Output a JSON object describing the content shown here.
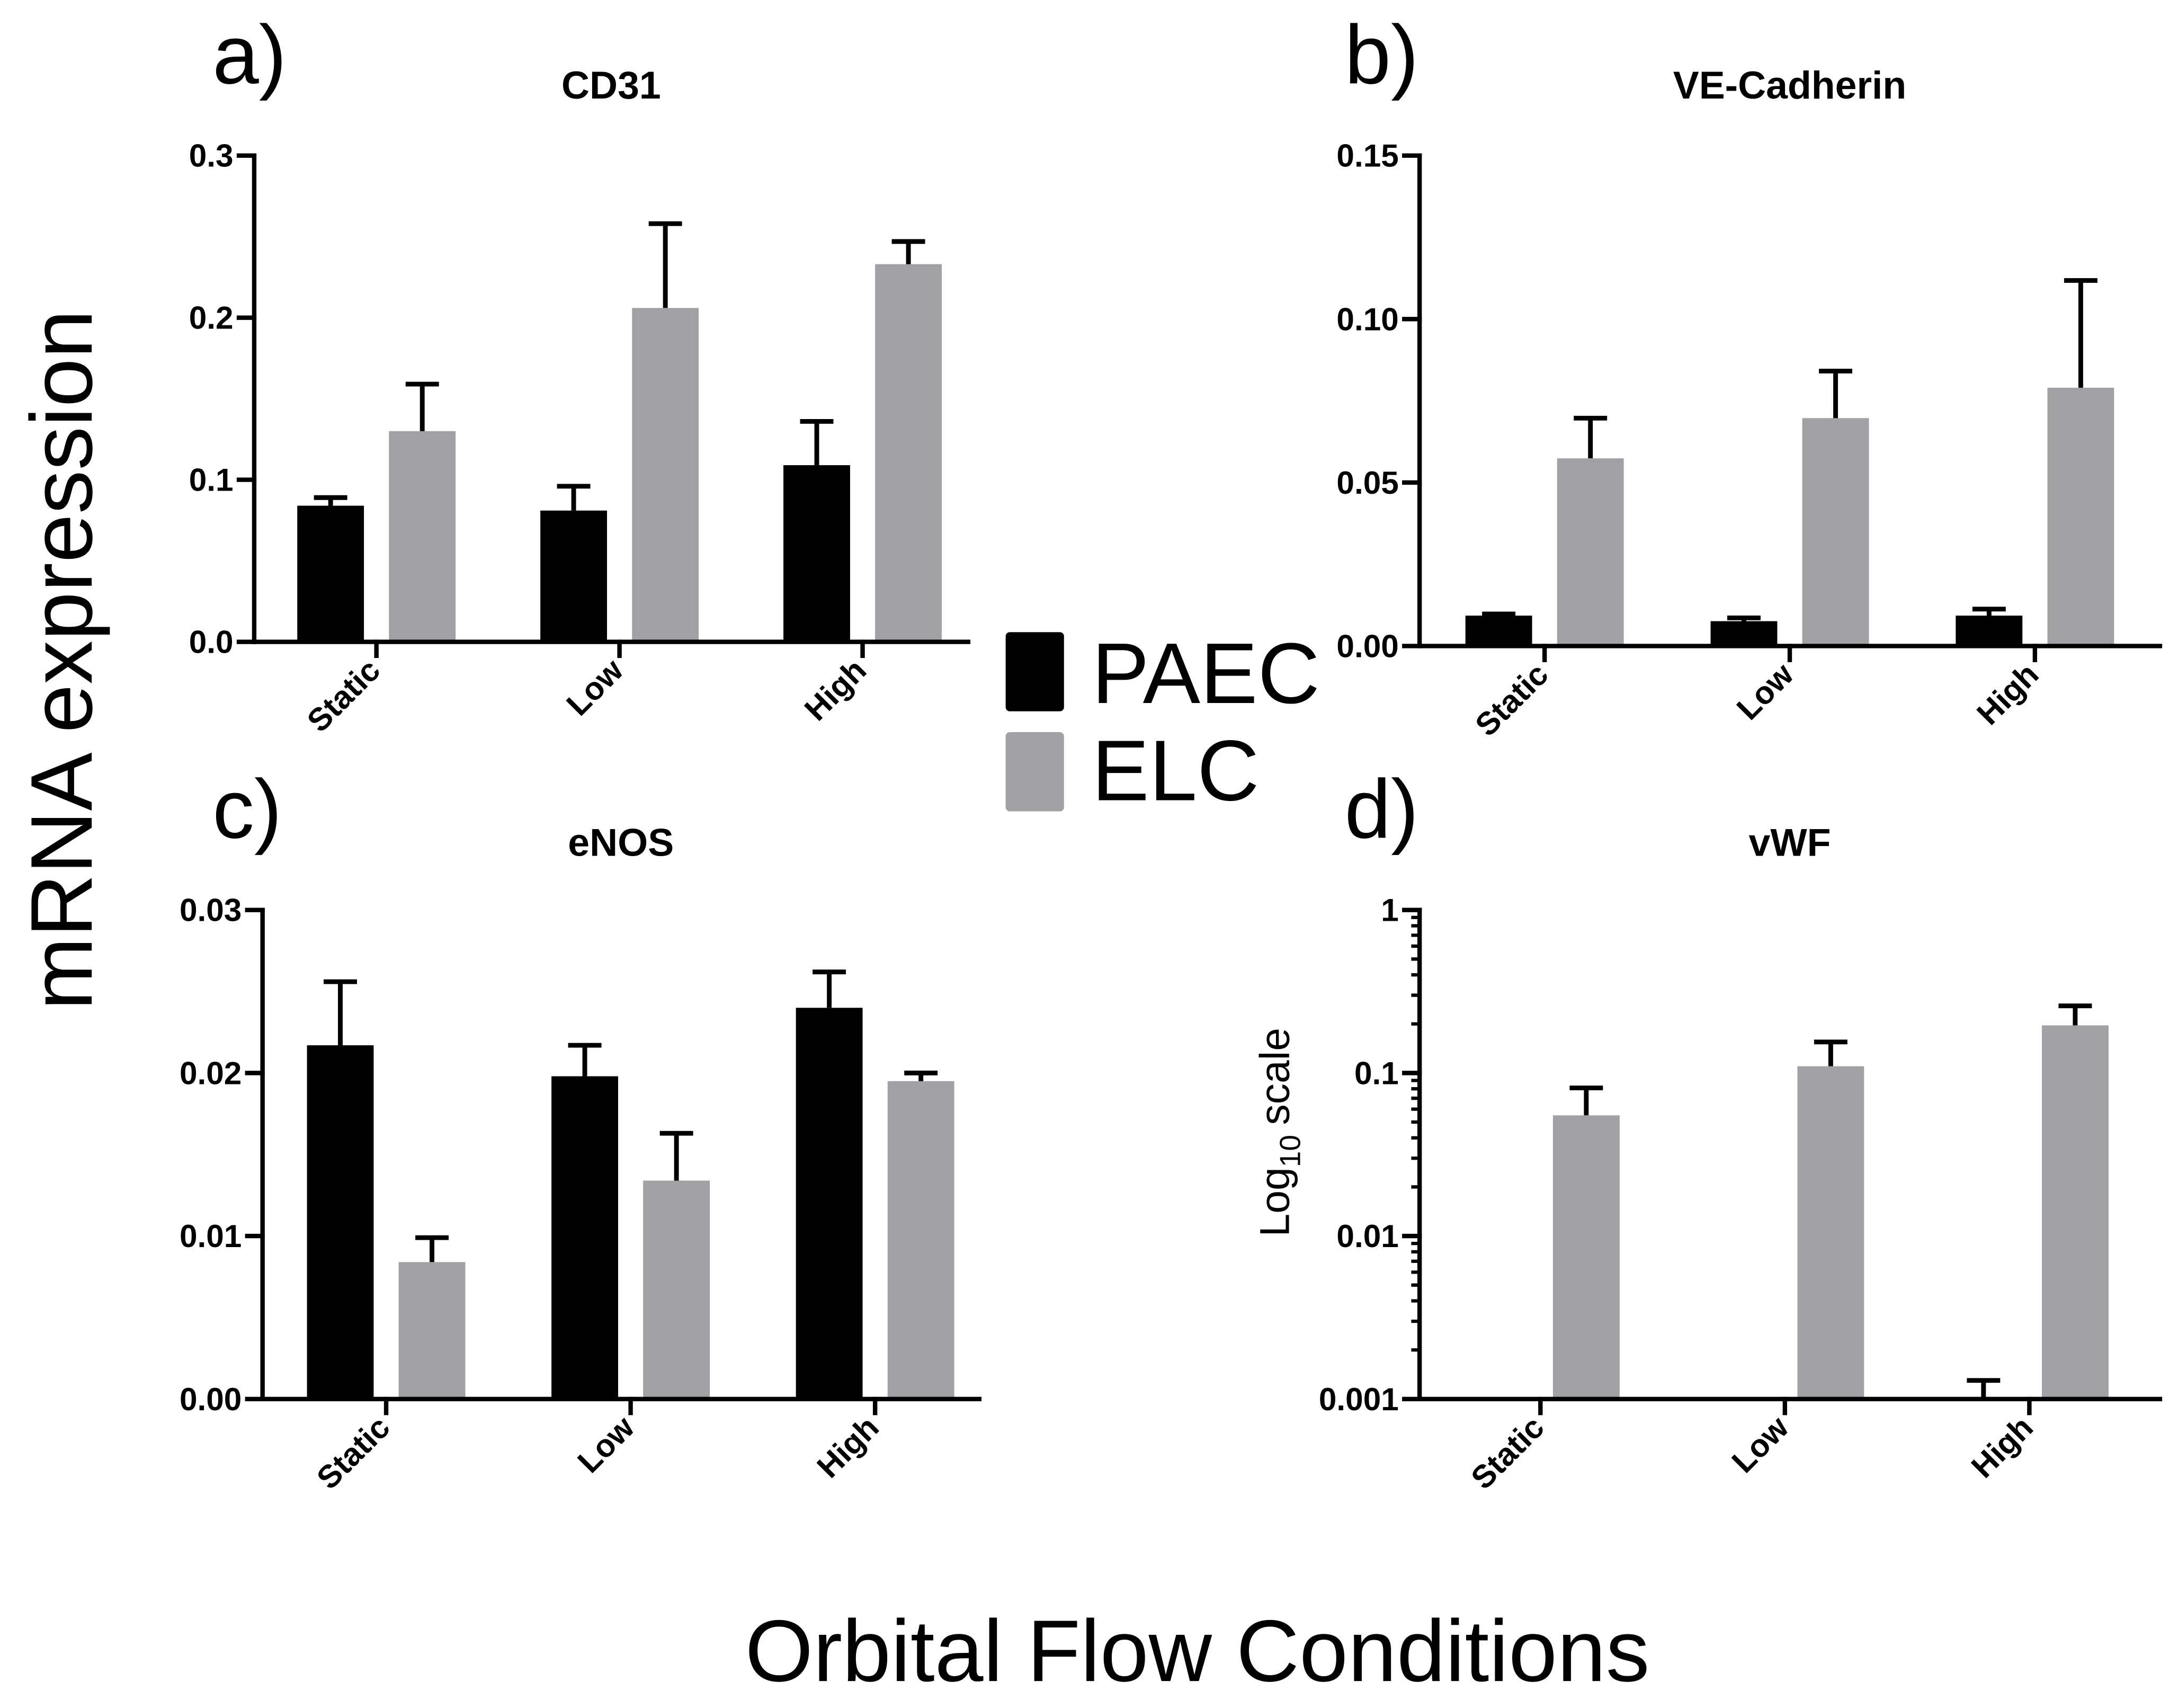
{
  "figure": {
    "ylabel": "mRNA expression",
    "xlabel": "Orbital Flow Conditions",
    "legend": [
      {
        "name": "PAEC",
        "color": "#000000"
      },
      {
        "name": "ELC",
        "color": "#a1a1a5"
      }
    ]
  },
  "chart_data": [
    {
      "panel": "a)",
      "type": "bar",
      "title": "CD31",
      "ylog": false,
      "ylim": [
        0,
        0.3
      ],
      "yticks": [
        0,
        0.1,
        0.2,
        0.3
      ],
      "ytick_labels": [
        "0.0",
        "0.1",
        "0.2",
        "0.3"
      ],
      "categories": [
        "Static",
        "Low",
        "High"
      ],
      "series": [
        {
          "name": "PAEC",
          "values": [
            0.084,
            0.081,
            0.109
          ],
          "errors": [
            0.005,
            0.015,
            0.027
          ]
        },
        {
          "name": "ELC",
          "values": [
            0.13,
            0.206,
            0.233
          ],
          "errors": [
            0.029,
            0.052,
            0.014
          ]
        }
      ]
    },
    {
      "panel": "b)",
      "type": "bar",
      "title": "VE-Cadherin",
      "ylog": false,
      "ylim": [
        0,
        0.15
      ],
      "yticks": [
        0,
        0.05,
        0.1,
        0.15
      ],
      "ytick_labels": [
        "0.00",
        "0.05",
        "0.10",
        "0.15"
      ],
      "categories": [
        "Static",
        "Low",
        "High"
      ],
      "series": [
        {
          "name": "PAEC",
          "values": [
            0.0093,
            0.0076,
            0.0093
          ],
          "errors": [
            0.0005,
            0.001,
            0.002
          ]
        },
        {
          "name": "ELC",
          "values": [
            0.0574,
            0.0697,
            0.079
          ],
          "errors": [
            0.0123,
            0.0144,
            0.0328
          ]
        }
      ]
    },
    {
      "panel": "c)",
      "type": "bar",
      "title": "eNOS",
      "ylog": false,
      "ylim": [
        0,
        0.03
      ],
      "yticks": [
        0,
        0.01,
        0.02,
        0.03
      ],
      "ytick_labels": [
        "0.00",
        "0.01",
        "0.02",
        "0.03"
      ],
      "categories": [
        "Static",
        "Low",
        "High"
      ],
      "series": [
        {
          "name": "PAEC",
          "values": [
            0.0217,
            0.0198,
            0.024
          ],
          "errors": [
            0.0039,
            0.0019,
            0.0022
          ]
        },
        {
          "name": "ELC",
          "values": [
            0.0084,
            0.0134,
            0.0195
          ],
          "errors": [
            0.0015,
            0.0029,
            0.0005
          ]
        }
      ]
    },
    {
      "panel": "d)",
      "type": "bar",
      "title": "vWF",
      "ylabel": {
        "main": "Log",
        "sub": "10",
        "tail": "scale"
      },
      "ylog": true,
      "ylim": [
        0.001,
        1
      ],
      "yticks": [
        0.001,
        0.01,
        0.1,
        1
      ],
      "ytick_labels": [
        "0.001",
        "0.01",
        "0.1",
        "1"
      ],
      "categories": [
        "Static",
        "Low",
        "High"
      ],
      "series": [
        {
          "name": "PAEC",
          "values": [
            null,
            null,
            0.001
          ],
          "errors": [
            null,
            null,
            0.0003
          ]
        },
        {
          "name": "ELC",
          "values": [
            0.055,
            0.11,
            0.196
          ],
          "errors": [
            0.026,
            0.045,
            0.062
          ]
        }
      ]
    }
  ]
}
